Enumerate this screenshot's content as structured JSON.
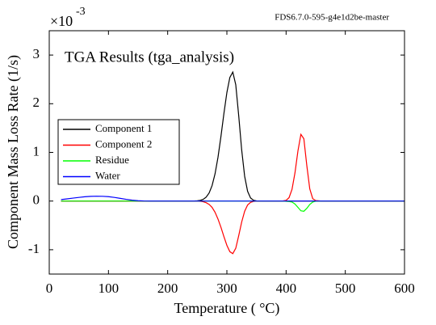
{
  "chart_data": {
    "type": "line",
    "title": "TGA Results (tga_analysis)",
    "watermark": "FDS6.7.0-595-g4e1d2be-master",
    "y_scale_base": "×10",
    "y_scale_exponent": "-3",
    "x_label": "Temperature (     °C)",
    "y_label": "Component Mass Loss Rate (1/s)",
    "xlim": [
      0,
      600
    ],
    "xticks": [
      0,
      100,
      200,
      300,
      400,
      500,
      600
    ],
    "ylim": [
      -1.5,
      3.5
    ],
    "yticks": [
      -1,
      0,
      1,
      2,
      3
    ],
    "legend": "upper-left",
    "x": [
      20,
      30,
      40,
      50,
      60,
      70,
      80,
      90,
      100,
      110,
      120,
      130,
      140,
      150,
      160,
      170,
      180,
      190,
      200,
      210,
      220,
      230,
      240,
      245,
      250,
      255,
      260,
      265,
      270,
      275,
      280,
      285,
      290,
      295,
      300,
      305,
      310,
      315,
      320,
      325,
      330,
      335,
      340,
      345,
      350,
      360,
      370,
      380,
      390,
      395,
      400,
      405,
      410,
      415,
      420,
      425,
      430,
      435,
      440,
      445,
      450,
      460,
      470,
      480,
      490,
      500,
      510,
      520,
      530,
      540,
      550,
      560,
      570,
      580,
      590,
      600
    ],
    "series": [
      {
        "name": "Component 1",
        "color": "#000000",
        "values": [
          0,
          0,
          0,
          0,
          0,
          0,
          0,
          0,
          0,
          0,
          0,
          0,
          0,
          0,
          0,
          0,
          0,
          0,
          0,
          0,
          0,
          0,
          0,
          0.002,
          0.005,
          0.014,
          0.035,
          0.08,
          0.166,
          0.318,
          0.559,
          0.9,
          1.33,
          1.8,
          2.23,
          2.54,
          2.65,
          2.39,
          1.75,
          1.05,
          0.51,
          0.2,
          0.064,
          0.017,
          0.003,
          0,
          0,
          0,
          0,
          0,
          0,
          0,
          0,
          0,
          0,
          0,
          0,
          0,
          0,
          0,
          0,
          0,
          0,
          0,
          0,
          0,
          0,
          0,
          0,
          0,
          0,
          0,
          0,
          0,
          0,
          0
        ]
      },
      {
        "name": "Component 2",
        "color": "#ff0000",
        "values": [
          0,
          0,
          0,
          0,
          0,
          0,
          0,
          0,
          0,
          0,
          0,
          0,
          0,
          0,
          0,
          0,
          0,
          0,
          0,
          0,
          0,
          0,
          0,
          -0.001,
          -0.002,
          -0.006,
          -0.014,
          -0.033,
          -0.068,
          -0.13,
          -0.23,
          -0.37,
          -0.54,
          -0.73,
          -0.91,
          -1.04,
          -1.08,
          -0.97,
          -0.71,
          -0.43,
          -0.21,
          -0.08,
          -0.026,
          -0.007,
          -0.001,
          0,
          0,
          0,
          0,
          0.003,
          0.015,
          0.07,
          0.24,
          0.58,
          1.03,
          1.37,
          1.28,
          0.73,
          0.25,
          0.05,
          0.01,
          0,
          0,
          0,
          0,
          0,
          0,
          0,
          0,
          0,
          0,
          0,
          0,
          0,
          0,
          0
        ]
      },
      {
        "name": "Residue",
        "color": "#00ff00",
        "values": [
          0,
          0,
          0,
          0,
          0,
          0,
          0,
          0,
          0,
          0,
          0,
          0,
          0,
          0,
          0,
          0,
          0,
          0,
          0,
          0,
          0,
          0,
          0,
          0,
          0,
          0,
          0,
          0,
          0,
          0,
          0,
          0,
          0,
          0,
          0,
          0,
          0,
          0,
          0,
          0,
          0,
          0,
          0,
          0,
          0,
          0,
          0,
          0,
          0,
          0,
          -0.005,
          -0.01,
          -0.02,
          -0.06,
          -0.13,
          -0.2,
          -0.21,
          -0.15,
          -0.07,
          -0.02,
          -0.004,
          0,
          0,
          0,
          0,
          0,
          0,
          0,
          0,
          0,
          0,
          0,
          0,
          0,
          0,
          0
        ]
      },
      {
        "name": "Water",
        "color": "#0000ff",
        "values": [
          0.03,
          0.045,
          0.06,
          0.075,
          0.088,
          0.097,
          0.1,
          0.098,
          0.09,
          0.075,
          0.055,
          0.035,
          0.018,
          0.007,
          0.002,
          0,
          0,
          0,
          0,
          0,
          0,
          0,
          0,
          0,
          0,
          0,
          0,
          0,
          0,
          0,
          0,
          0,
          0,
          0,
          0,
          0,
          0,
          0,
          0,
          0,
          0,
          0,
          0,
          0,
          0,
          0,
          0,
          0,
          0,
          0,
          0,
          0,
          0,
          0,
          0,
          0,
          0,
          0,
          0,
          0,
          0,
          0,
          0,
          0,
          0,
          0,
          0,
          0,
          0,
          0,
          0,
          0,
          0,
          0,
          0,
          0
        ]
      }
    ]
  }
}
